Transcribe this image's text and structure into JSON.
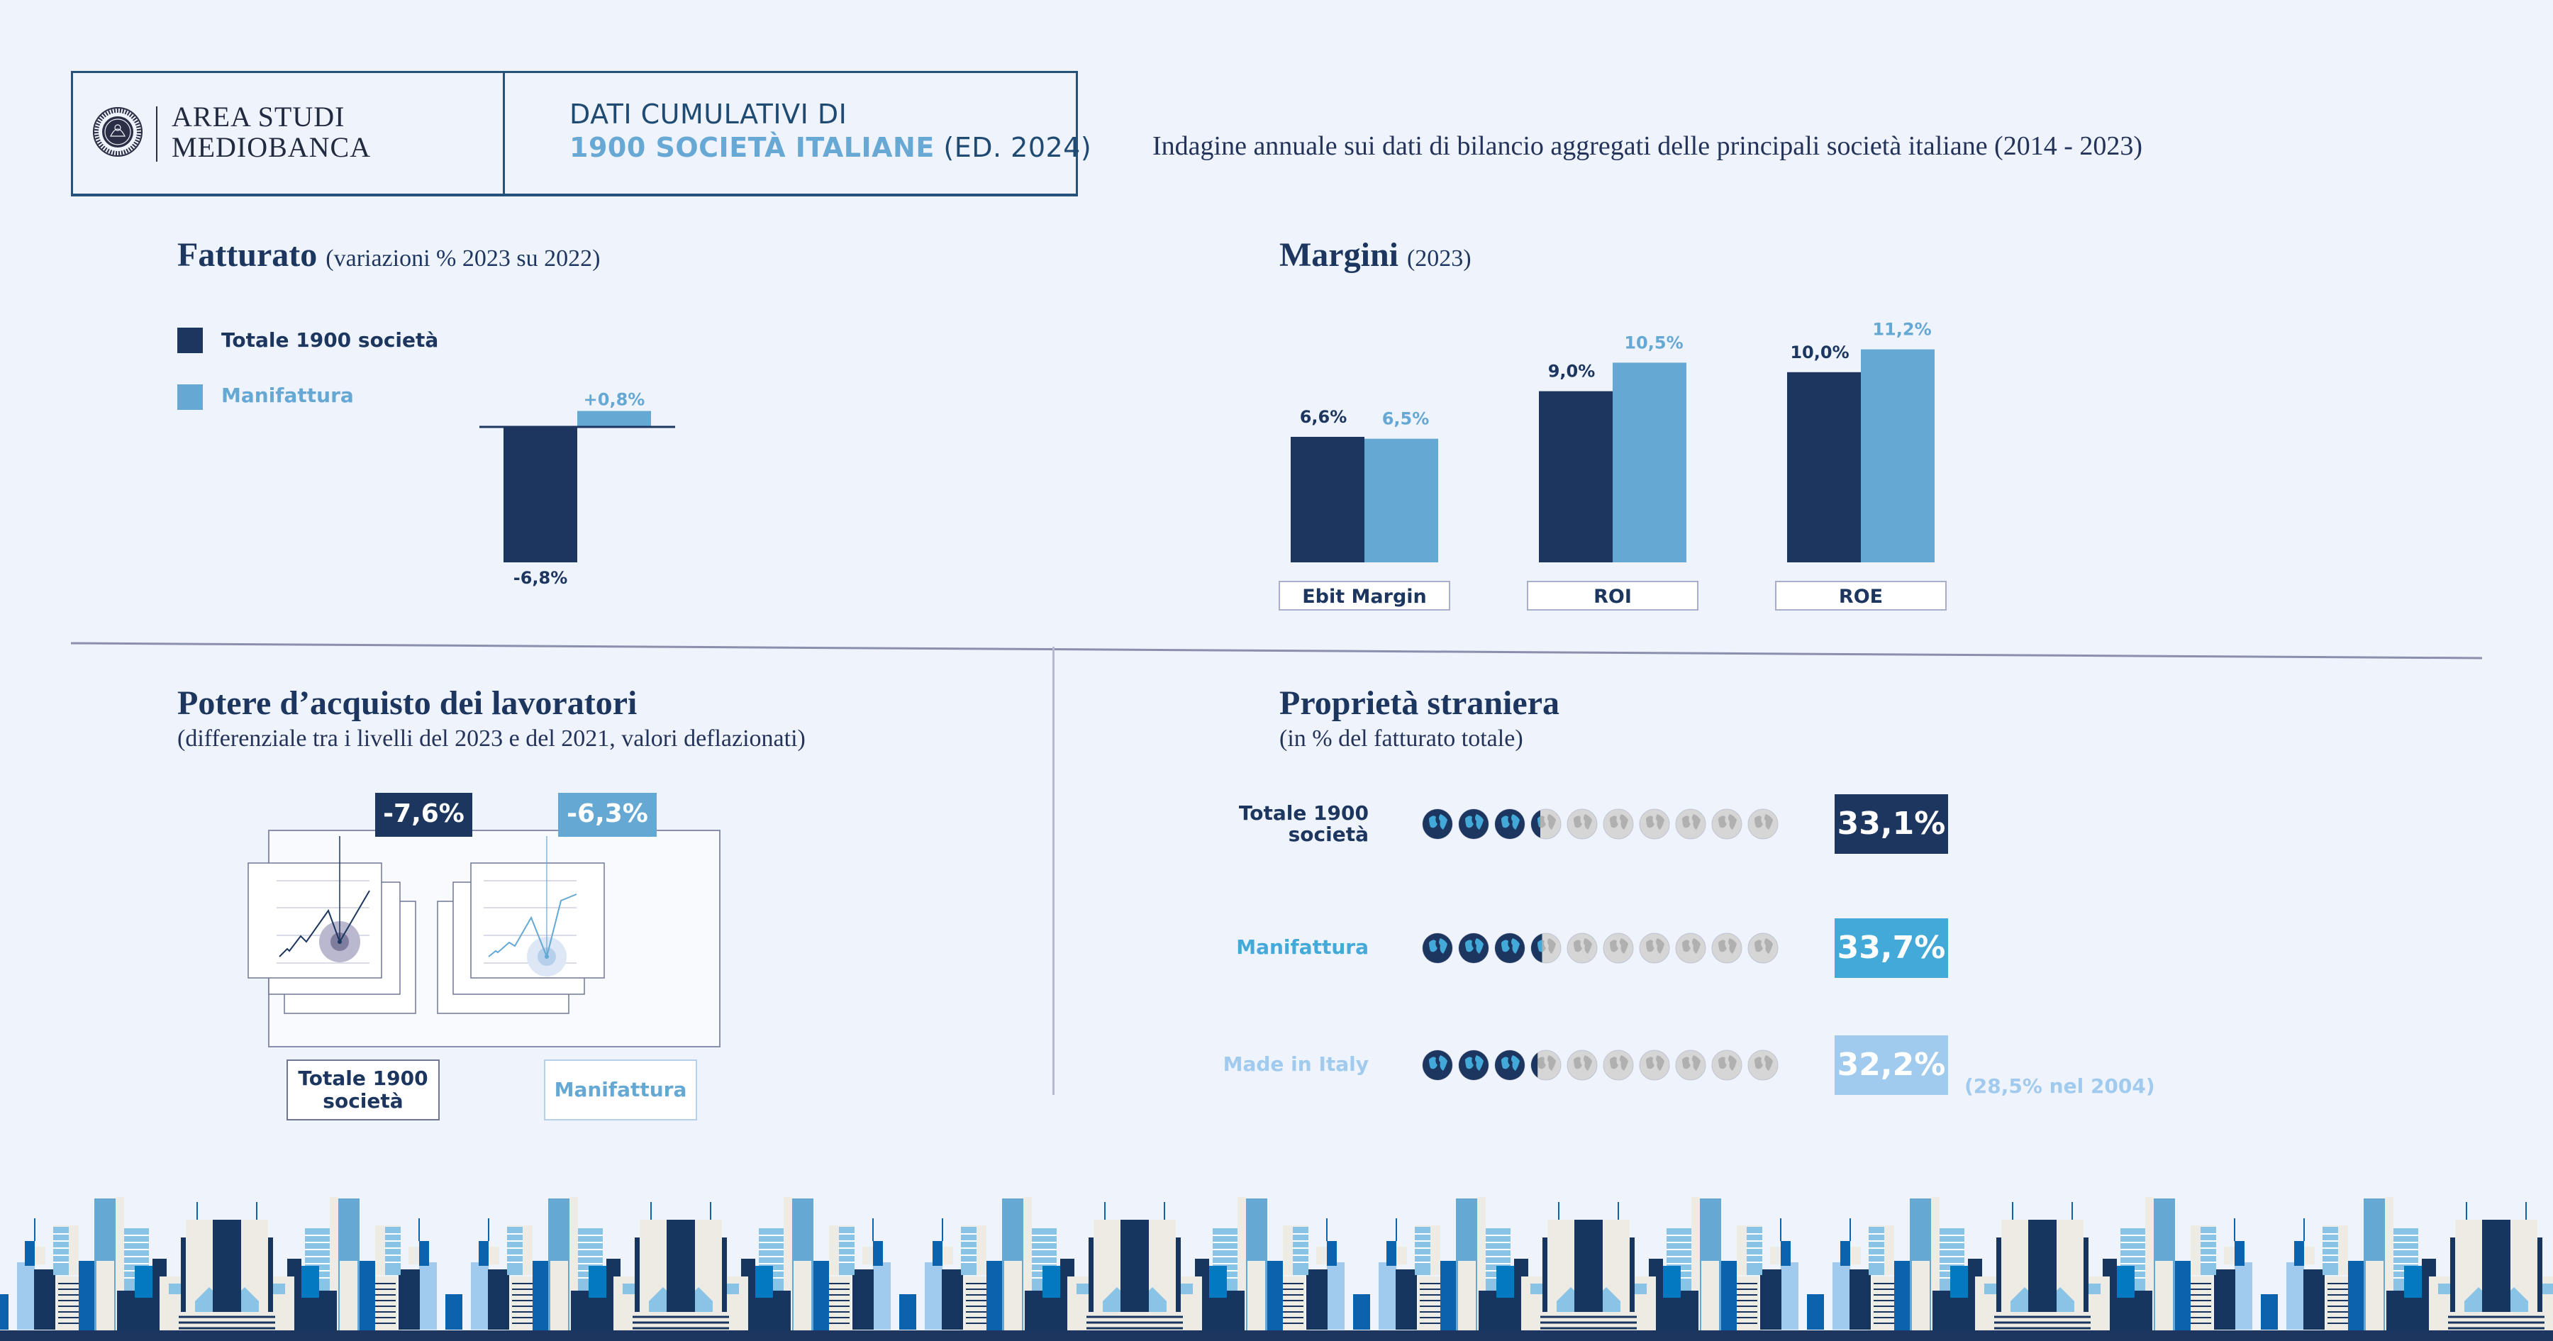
{
  "header": {
    "logo_line_1": "AREA STUDI",
    "logo_line_2": "MEDIOBANCA",
    "logo_emblem_text": "MEDIOBANCA BANCA DI CREDITO FINANZIARIO",
    "title_line_1": "DATI CUMULATIVI DI",
    "title_highlight": "1900 SOCIETÀ ITALIANE",
    "title_suffix": " (ED. 2024)",
    "subtitle": "Indagine annuale sui dati di bilancio aggregati delle principali società italiane (2014 - 2023)"
  },
  "colors": {
    "dark": "#1c365f",
    "light": "#66a8d4",
    "mid": "#42a9d9",
    "pale": "#a1cbee",
    "background": "#eff3fb"
  },
  "fatturato": {
    "title": "Fatturato",
    "subtitle": "(variazioni % 2023 su 2022)",
    "legend": [
      {
        "label": "Totale 1900 società",
        "color": "#1c365f"
      },
      {
        "label": "Manifattura",
        "color": "#66a8d4"
      }
    ]
  },
  "margini": {
    "title": "Margini",
    "subtitle": "(2023)"
  },
  "chart_data": [
    {
      "type": "bar",
      "title": "Fatturato (variazioni % 2023 su 2022)",
      "categories": [
        "2023 su 2022"
      ],
      "series": [
        {
          "name": "Totale 1900 società",
          "values": [
            -6.8
          ],
          "labels": [
            "-6,8%"
          ]
        },
        {
          "name": "Manifattura",
          "values": [
            0.8
          ],
          "labels": [
            "+0,8%"
          ]
        }
      ],
      "ylim": [
        -7,
        1
      ],
      "grid": false,
      "legend": "top-left"
    },
    {
      "type": "bar",
      "title": "Margini (2023)",
      "categories": [
        "Ebit Margin",
        "ROI",
        "ROE"
      ],
      "series": [
        {
          "name": "Totale 1900 società",
          "values": [
            6.6,
            9.0,
            10.0
          ],
          "labels": [
            "6,6%",
            "9,0%",
            "10,0%"
          ]
        },
        {
          "name": "Manifattura",
          "values": [
            6.5,
            10.5,
            11.2
          ],
          "labels": [
            "6,5%",
            "10,5%",
            "11,2%"
          ]
        }
      ],
      "ylim": [
        0,
        12
      ],
      "grid": false
    }
  ],
  "potere": {
    "title": "Potere d’acquisto dei lavoratori",
    "subtitle": "(differenziale tra i livelli del 2023 e del 2021, valori deflazionati)",
    "items": [
      {
        "label_line_1": "Totale 1900",
        "label_line_2": "società",
        "value": "-7,6%"
      },
      {
        "label_line_1": "Manifattura",
        "label_line_2": "",
        "value": "-6,3%"
      }
    ]
  },
  "proprieta": {
    "title": "Proprietà straniera",
    "subtitle": "(in % del fatturato totale)",
    "rows": [
      {
        "label_line_1": "Totale 1900",
        "label_line_2": "società",
        "value": "33,1%",
        "percent": 33.1,
        "color": "#1c365f",
        "box_color": "#1c365f"
      },
      {
        "label_line_1": "Manifattura",
        "label_line_2": "",
        "value": "33,7%",
        "percent": 33.7,
        "color": "#42a9d9",
        "box_color": "#42a9d9"
      },
      {
        "label_line_1": "Made in Italy",
        "label_line_2": "",
        "value": "32,2%",
        "percent": 32.2,
        "color": "#a1cbee",
        "box_color": "#a1cbee"
      }
    ],
    "note": "(28,5% nel 2004)"
  }
}
